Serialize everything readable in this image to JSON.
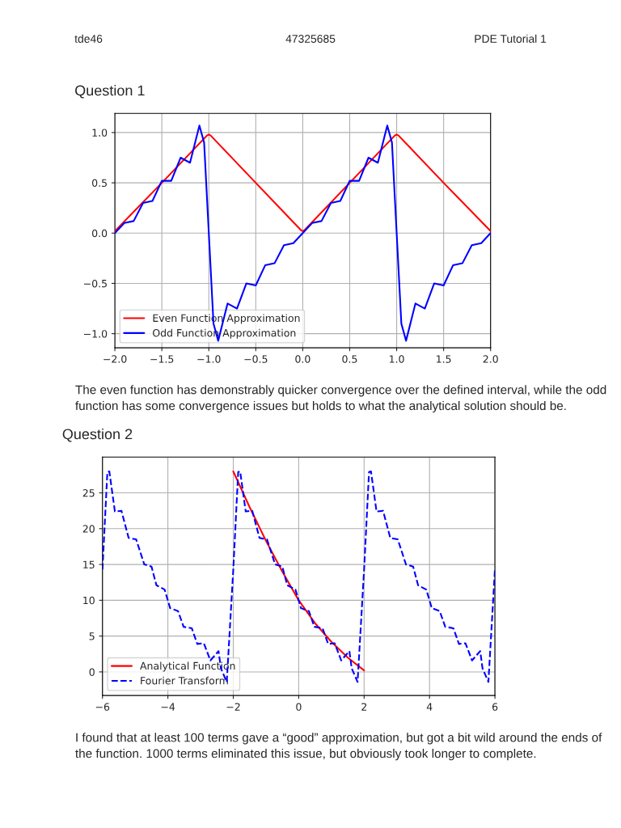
{
  "chart_data": [
    {
      "type": "line",
      "title": "Question 1",
      "legend": "lower left",
      "grid": true,
      "annotations": [
        "tde46",
        "47325685",
        "PDE Tutorial 1",
        "The even function has demonstrably quicker convergence over the defined interval, while the odd function has some convergence issues but holds to what the analytical solution should be."
      ],
      "xlim": [
        -2,
        2
      ],
      "ylim": [
        -1.14,
        1.19
      ],
      "xticks": [
        {
          "value": -2,
          "label": "−2.0"
        },
        {
          "value": -1.5,
          "label": "−1.5"
        },
        {
          "value": -1,
          "label": "−1.0"
        },
        {
          "value": -0.5,
          "label": "−0.5"
        },
        {
          "value": 0,
          "label": "0.0"
        },
        {
          "value": 0.5,
          "label": "0.5"
        },
        {
          "value": 1,
          "label": "1.0"
        },
        {
          "value": 1.5,
          "label": "1.5"
        },
        {
          "value": 2,
          "label": "2.0"
        }
      ],
      "yticks": [
        {
          "value": -1,
          "label": "−1.0"
        },
        {
          "value": -0.5,
          "label": "−0.5"
        },
        {
          "value": 0,
          "label": "0.0"
        },
        {
          "value": 0.5,
          "label": "0.5"
        },
        {
          "value": 1,
          "label": "1.0"
        }
      ],
      "series": [
        {
          "name": "Even Function Approximation",
          "color": "#ff0000",
          "line_style": "solid",
          "x": [
            -2,
            -1.5,
            -1.02,
            -1,
            -0.98,
            -0.5,
            -0.02,
            0,
            0.02,
            0.5,
            0.98,
            1,
            1.02,
            1.5,
            2
          ],
          "values": [
            0.02,
            0.5,
            0.97,
            0.98,
            0.97,
            0.5,
            0.03,
            0.02,
            0.03,
            0.5,
            0.97,
            0.98,
            0.97,
            0.5,
            0.02
          ]
        },
        {
          "name": "Odd Function Approximation",
          "color": "#0000ff",
          "line_style": "solid",
          "x": [
            -2,
            -1.9,
            -1.8,
            -1.7,
            -1.6,
            -1.5,
            -1.4,
            -1.3,
            -1.2,
            -1.1,
            -1.05,
            -1,
            -0.95,
            -0.9,
            -0.8,
            -0.7,
            -0.6,
            -0.5,
            -0.4,
            -0.3,
            -0.2,
            -0.1,
            0,
            0.1,
            0.2,
            0.3,
            0.4,
            0.5,
            0.6,
            0.7,
            0.8,
            0.9,
            0.95,
            1,
            1.05,
            1.1,
            1.2,
            1.3,
            1.4,
            1.5,
            1.6,
            1.7,
            1.8,
            1.9,
            2
          ],
          "values": [
            0.0,
            0.1,
            0.12,
            0.3,
            0.32,
            0.52,
            0.52,
            0.75,
            0.7,
            1.07,
            0.9,
            0.0,
            -0.9,
            -1.07,
            -0.7,
            -0.75,
            -0.5,
            -0.52,
            -0.32,
            -0.3,
            -0.12,
            -0.1,
            0.0,
            0.1,
            0.12,
            0.3,
            0.32,
            0.52,
            0.52,
            0.75,
            0.7,
            1.07,
            0.9,
            0.0,
            -0.9,
            -1.07,
            -0.7,
            -0.75,
            -0.5,
            -0.52,
            -0.32,
            -0.3,
            -0.12,
            -0.1,
            0.0
          ]
        }
      ]
    },
    {
      "type": "line",
      "title": "Question 2",
      "legend": "lower left",
      "grid": true,
      "annotations": [
        "I found that at least 100 terms gave a “good” approximation, but got a bit wild around the ends of the function. 1000 terms eliminated this issue, but obviously took longer to complete."
      ],
      "xlim": [
        -6,
        6
      ],
      "ylim": [
        -3.3,
        30
      ],
      "xticks": [
        {
          "value": -6,
          "label": "−6"
        },
        {
          "value": -4,
          "label": "−4"
        },
        {
          "value": -2,
          "label": "−2"
        },
        0,
        2,
        4,
        6
      ],
      "yticks": [
        0,
        5,
        10,
        15,
        20,
        25
      ],
      "series": [
        {
          "name": "Analytical Function",
          "color": "#ff0000",
          "line_style": "solid",
          "x": [
            -2,
            -1.5,
            -1,
            -0.5,
            0,
            0.5,
            1,
            1.5,
            2
          ],
          "values": [
            28,
            23,
            18.3,
            14,
            10,
            6.8,
            4.2,
            2,
            0.2
          ]
        },
        {
          "name": "Fourier Transform",
          "color": "#0000ff",
          "line_style": "dashed",
          "x": [
            -6,
            -5.85,
            -5.79,
            -5.62,
            -5.42,
            -5.2,
            -4.97,
            -4.72,
            -4.5,
            -4.35,
            -4.1,
            -3.93,
            -3.69,
            -3.52,
            -3.27,
            -3.1,
            -2.9,
            -2.7,
            -2.45,
            -2.38,
            -2.2,
            -2,
            -1.85,
            -1.79,
            -1.62,
            -1.42,
            -1.2,
            -0.97,
            -0.72,
            -0.5,
            -0.35,
            -0.1,
            0.07,
            0.31,
            0.48,
            0.73,
            0.9,
            1.1,
            1.3,
            1.55,
            1.62,
            1.8,
            2,
            2.15,
            2.21,
            2.38,
            2.58,
            2.8,
            3.03,
            3.28,
            3.5,
            3.65,
            3.9,
            4.07,
            4.31,
            4.48,
            4.73,
            4.9,
            5.1,
            5.3,
            5.55,
            5.62,
            5.8,
            6
          ],
          "values": [
            14.3,
            27.9,
            28,
            22.4,
            22.5,
            18.7,
            18.5,
            15,
            14.7,
            12.1,
            11.5,
            8.9,
            8.5,
            6.3,
            6.1,
            3.9,
            4,
            1.6,
            2.9,
            0.5,
            -1.4,
            14.3,
            27.9,
            28,
            22.4,
            22.5,
            18.7,
            18.5,
            15,
            14.7,
            12.1,
            11.5,
            8.9,
            8.5,
            6.3,
            6.1,
            3.9,
            4,
            1.6,
            2.9,
            0.5,
            -1.4,
            14.3,
            27.9,
            28,
            22.4,
            22.5,
            18.7,
            18.5,
            15,
            14.7,
            12.1,
            11.5,
            8.9,
            8.5,
            6.3,
            6.1,
            3.9,
            4,
            1.6,
            2.9,
            0.5,
            -1.4,
            14.3
          ]
        }
      ]
    }
  ]
}
